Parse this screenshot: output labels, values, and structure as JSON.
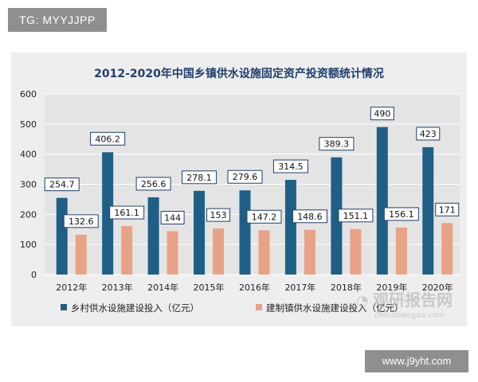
{
  "top_tag": "TG: MYYJJPP",
  "bottom_tag": "www.j9yht.com",
  "watermark": {
    "main": "观研报告网",
    "sub": "chinabaogao.com"
  },
  "colors": {
    "series1": "#1f5f86",
    "series2": "#e8a386",
    "plot_bg": "#e4e4e4",
    "frame_bg": "#eeeeee",
    "title": "#1f3f6e"
  },
  "chart_data": {
    "type": "bar",
    "title": "2012-2020年中国乡镇供水设施固定资产投资额统计情况",
    "categories": [
      "2012年",
      "2013年",
      "2014年",
      "2015年",
      "2016年",
      "2017年",
      "2018年",
      "2019年",
      "2020年"
    ],
    "series": [
      {
        "name": "乡村供水设施建设投入（亿元）",
        "values": [
          254.7,
          406.2,
          256.6,
          278.1,
          279.6,
          314.5,
          389.3,
          490,
          423
        ],
        "labels": [
          "254.7",
          "406.2",
          "256.6",
          "278.1",
          "279.6",
          "314.5",
          "389.3",
          "490",
          "423"
        ]
      },
      {
        "name": "建制镇供水设施建设投入（亿元）",
        "values": [
          132.6,
          161.1,
          144,
          153,
          147.2,
          148.6,
          151.1,
          156.1,
          171
        ],
        "labels": [
          "132.6",
          "161.1",
          "144",
          "153",
          "147.2",
          "148.6",
          "151.1",
          "156.1",
          "171"
        ]
      }
    ],
    "yticks": [
      "0",
      "100",
      "200",
      "300",
      "400",
      "500",
      "600"
    ],
    "ylim": [
      0,
      600
    ],
    "grid": true,
    "legend_position": "bottom"
  }
}
